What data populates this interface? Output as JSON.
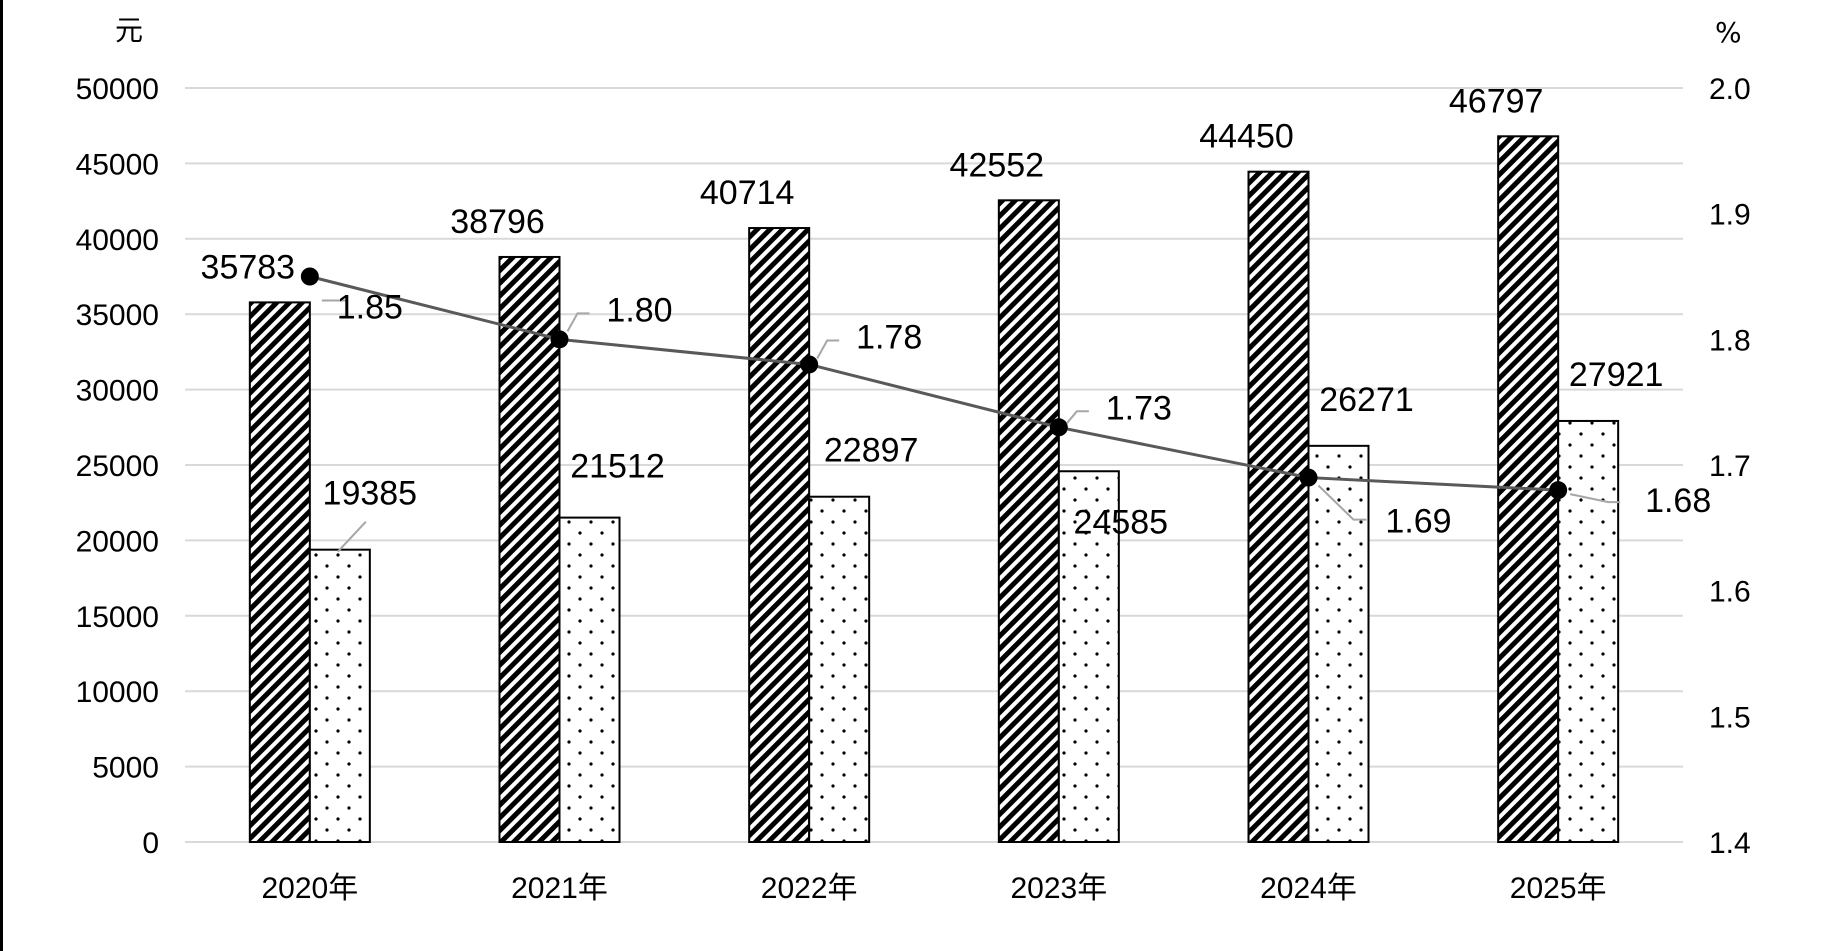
{
  "chart_data": {
    "type": "bar",
    "title": "",
    "categories": [
      "2020年",
      "2021年",
      "2022年",
      "2023年",
      "2024年",
      "2025年"
    ],
    "series": [
      {
        "values": [
          35783,
          38796,
          40714,
          42552,
          44450,
          46797
        ],
        "pattern": "diagonal-hatch",
        "axis": "left"
      },
      {
        "values": [
          19385,
          21512,
          22897,
          24585,
          26271,
          27921
        ],
        "pattern": "dots",
        "axis": "left"
      },
      {
        "type": "line",
        "values": [
          1.85,
          1.8,
          1.78,
          1.73,
          1.69,
          1.68
        ],
        "labels": [
          "1.85",
          "1.80",
          "1.78",
          "1.73",
          "1.69",
          "1.68"
        ],
        "axis": "right",
        "color": "#595959"
      }
    ],
    "y_left": {
      "unit": "元",
      "min": 0,
      "max": 50000,
      "step": 5000,
      "ticks": [
        "0",
        "5000",
        "10000",
        "15000",
        "20000",
        "25000",
        "30000",
        "35000",
        "40000",
        "45000",
        "50000"
      ]
    },
    "y_right": {
      "unit": "%",
      "min": 1.4,
      "max": 2.0,
      "step": 0.1,
      "ticks": [
        "1.4",
        "1.5",
        "1.6",
        "1.7",
        "1.8",
        "1.9",
        "2.0"
      ]
    },
    "grid": true,
    "gridColor": "#d9d9d9",
    "legend": "none"
  }
}
